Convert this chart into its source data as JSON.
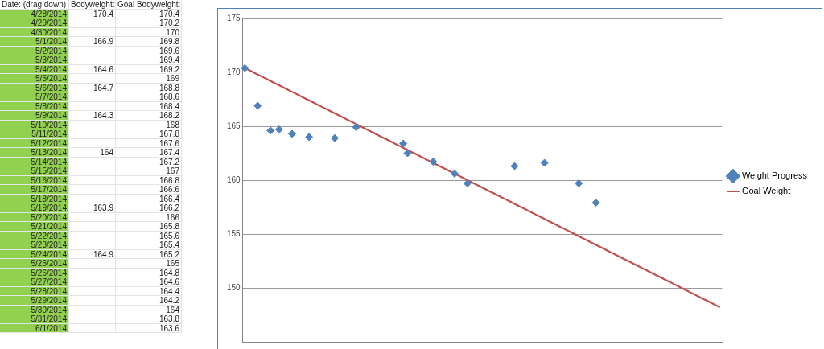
{
  "chart_data": [
    {
      "type": "other",
      "xlabel": "Date: (drag down)",
      "categories": [
        "4/28/2014",
        "4/29/2014",
        "4/30/2014",
        "5/1/2014",
        "5/2/2014",
        "5/3/2014",
        "5/4/2014",
        "5/5/2014",
        "5/6/2014",
        "5/7/2014",
        "5/8/2014",
        "5/9/2014",
        "5/10/2014",
        "5/11/2014",
        "5/12/2014",
        "5/13/2014",
        "5/14/2014",
        "5/15/2014",
        "5/16/2014",
        "5/17/2014",
        "5/18/2014",
        "5/19/2014",
        "5/20/2014",
        "5/21/2014",
        "5/22/2014",
        "5/23/2014",
        "5/24/2014",
        "5/25/2014",
        "5/26/2014",
        "5/27/2014",
        "5/28/2014",
        "5/29/2014",
        "5/30/2014",
        "5/31/2014",
        "6/1/2014"
      ],
      "series": [
        {
          "name": "Bodyweight:",
          "values": [
            170.4,
            null,
            null,
            166.9,
            null,
            null,
            164.6,
            null,
            164.7,
            null,
            null,
            164.3,
            null,
            null,
            null,
            164,
            null,
            null,
            null,
            null,
            null,
            163.9,
            null,
            null,
            null,
            null,
            164.9,
            null,
            null,
            null,
            null,
            null,
            null,
            null,
            null
          ]
        },
        {
          "name": "Goal Bodyweight:",
          "values": [
            170.4,
            170.2,
            170,
            169.8,
            169.6,
            169.4,
            169.2,
            169,
            168.8,
            168.6,
            168.4,
            168.2,
            168,
            167.8,
            167.6,
            167.4,
            167.2,
            167,
            166.8,
            166.6,
            166.4,
            166.2,
            166,
            165.8,
            165.6,
            165.4,
            165.2,
            165,
            164.8,
            164.6,
            164.4,
            164.2,
            164,
            163.8,
            163.6
          ]
        }
      ],
      "data_labels": true
    },
    {
      "type": "line",
      "categories": [
        null,
        null,
        null,
        null,
        null,
        null,
        null,
        null,
        null,
        null,
        null,
        null,
        null,
        null,
        null,
        null,
        null,
        null,
        null,
        null,
        null,
        null,
        null,
        null,
        null,
        null,
        null,
        null,
        null,
        null,
        null,
        null,
        null,
        null,
        null,
        null,
        null,
        null,
        null,
        null,
        null,
        null,
        null,
        null,
        null,
        null,
        null,
        null,
        null,
        null,
        null,
        null,
        null,
        null,
        null,
        null,
        null,
        null,
        null,
        null,
        null,
        null,
        null,
        null,
        null,
        null,
        null,
        null,
        null,
        null,
        null,
        null,
        null,
        null,
        null,
        null,
        null,
        null,
        null,
        null,
        null,
        null,
        null,
        null,
        null,
        null,
        null,
        null,
        null,
        null,
        null,
        null,
        null,
        null,
        null,
        null,
        null,
        null,
        null,
        null,
        null,
        null,
        null,
        null,
        null,
        null,
        null,
        null,
        null,
        null,
        null,
        null
      ],
      "series": [
        {
          "name": "Weight Progress",
          "type": "scatter",
          "color": "#4f81bd",
          "marker": "diamond",
          "values": [
            170.4,
            null,
            null,
            166.9,
            null,
            null,
            164.6,
            null,
            164.7,
            null,
            null,
            164.3,
            null,
            null,
            null,
            164.0,
            null,
            null,
            null,
            null,
            null,
            163.9,
            null,
            null,
            null,
            null,
            164.9,
            null,
            null,
            null,
            null,
            null,
            null,
            null,
            null,
            null,
            null,
            163.4,
            162.5,
            null,
            null,
            null,
            null,
            null,
            161.7,
            null,
            null,
            null,
            null,
            160.6,
            null,
            null,
            159.7,
            null,
            null,
            null,
            null,
            null,
            null,
            null,
            null,
            null,
            null,
            161.3,
            null,
            null,
            null,
            null,
            null,
            null,
            161.6,
            null,
            null,
            null,
            null,
            null,
            null,
            null,
            159.7,
            null,
            null,
            null,
            157.9,
            null,
            null,
            null,
            null,
            null,
            null,
            null,
            null,
            null,
            null,
            null,
            null,
            null,
            null,
            null,
            null,
            null,
            null,
            null,
            null,
            null,
            null,
            null,
            null,
            null,
            null,
            null,
            null,
            null
          ]
        },
        {
          "name": "Goal Weight",
          "type": "line",
          "color": "#c0504d",
          "marker": "none",
          "values": [
            170.4,
            170.2,
            170,
            169.8,
            169.6,
            169.4,
            169.2,
            169,
            168.8,
            168.6,
            168.4,
            168.2,
            168,
            167.8,
            167.6,
            167.4,
            167.2,
            167,
            166.8,
            166.6,
            166.4,
            166.2,
            166,
            165.8,
            165.6,
            165.4,
            165.2,
            165,
            164.8,
            164.6,
            164.4,
            164.2,
            164,
            163.8,
            163.6,
            163.4,
            163.2,
            163,
            162.8,
            162.6,
            162.4,
            162.2,
            162,
            161.8,
            161.6,
            161.4,
            161.2,
            161,
            160.8,
            160.6,
            160.4,
            160.2,
            160,
            159.8,
            159.6,
            159.4,
            159.2,
            159,
            158.8,
            158.6,
            158.4,
            158.2,
            158,
            157.8,
            157.6,
            157.4,
            157.2,
            157,
            156.8,
            156.6,
            156.4,
            156.2,
            156,
            155.8,
            155.6,
            155.4,
            155.2,
            155,
            154.8,
            154.6,
            154.4,
            154.2,
            154,
            153.8,
            153.6,
            153.4,
            153.2,
            153,
            152.8,
            152.6,
            152.4,
            152.2,
            152,
            151.8,
            151.6,
            151.4,
            151.2,
            151,
            150.8,
            150.6,
            150.4,
            150.2,
            150,
            149.8,
            149.6,
            149.4,
            149.2,
            149,
            148.8,
            148.6,
            148.4,
            148.2
          ]
        }
      ],
      "ylim": [
        145,
        175
      ],
      "yticks": [
        150,
        155,
        160,
        165,
        170,
        175
      ],
      "grid": "y",
      "tick_labels": "y",
      "legend": "right"
    }
  ]
}
